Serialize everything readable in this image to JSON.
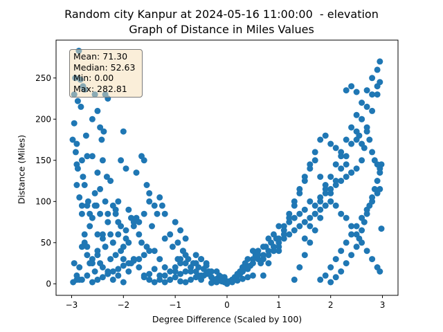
{
  "chart_data": {
    "type": "scatter",
    "title": "Random city Kanpur at 2024-05-16 11:00:00  - elevation",
    "subtitle": "Graph of Distance in Miles Values",
    "xlabel": "Degree Difference (Scaled by 100)",
    "ylabel": "Distance (Miles)",
    "xlim": [
      -3.3,
      3.3
    ],
    "ylim": [
      -14,
      296
    ],
    "xticks": [
      -3,
      -2,
      -1,
      0,
      1,
      2,
      3
    ],
    "yticks": [
      0,
      50,
      100,
      150,
      200,
      250
    ],
    "grid": false,
    "point_color": "#1f77b4",
    "stats": {
      "mean": "Mean: 71.30",
      "median": "Median: 52.63",
      "min": "Min: 0.00",
      "max": "Max: 282.81"
    },
    "x": [
      -2.97,
      -2.95,
      -2.93,
      -2.9,
      -2.9,
      -2.88,
      -2.86,
      -2.83,
      -2.82,
      -2.8,
      -2.78,
      -2.75,
      -2.72,
      -2.7,
      -2.6,
      -2.55,
      -2.5,
      -2.45,
      -2.42,
      -2.38,
      -2.35,
      -2.3,
      -2.98,
      -2.95,
      -2.92,
      -2.9,
      -2.88,
      -2.85,
      -2.8,
      -2.78,
      -2.75,
      -2.7,
      -2.68,
      -2.65,
      -2.6,
      -2.55,
      -2.52,
      -2.5,
      -2.45,
      -2.4,
      -2.35,
      -2.32,
      -2.25,
      -2.2,
      -2.15,
      -2.1,
      -2.05,
      -2.0,
      -1.95,
      -2.95,
      -2.9,
      -2.85,
      -2.8,
      -2.75,
      -2.7,
      -2.65,
      -2.6,
      -2.55,
      -2.5,
      -2.45,
      -2.4,
      -2.35,
      -2.3,
      -2.25,
      -2.2,
      -2.15,
      -2.1,
      -2.05,
      -2.0,
      -1.95,
      -1.9,
      -1.85,
      -1.8,
      -1.75,
      -1.7,
      -1.65,
      -1.6,
      -1.55,
      -1.5,
      -2.9,
      -2.85,
      -2.8,
      -2.75,
      -2.7,
      -2.65,
      -2.6,
      -2.55,
      -2.5,
      -2.45,
      -2.4,
      -2.35,
      -2.3,
      -2.25,
      -2.2,
      -2.15,
      -2.1,
      -2.05,
      -2.0,
      -1.95,
      -1.9,
      -1.85,
      -1.8,
      -1.75,
      -1.7,
      -1.65,
      -1.6,
      -1.55,
      -1.5,
      -1.45,
      -1.4,
      -1.35,
      -1.3,
      -1.25,
      -1.2,
      -2.8,
      -2.7,
      -2.6,
      -2.5,
      -2.4,
      -2.3,
      -2.2,
      -2.1,
      -2.0,
      -1.9,
      -1.8,
      -1.7,
      -1.6,
      -1.5,
      -1.4,
      -1.3,
      -1.2,
      -1.1,
      -1.05,
      -1.0,
      -0.95,
      -0.9,
      -0.85,
      -0.8,
      -2.6,
      -2.5,
      -2.4,
      -2.3,
      -2.2,
      -2.1,
      -2.0,
      -1.9,
      -1.8,
      -1.7,
      -1.6,
      -1.5,
      -1.4,
      -1.3,
      -1.2,
      -1.1,
      -1.0,
      -0.95,
      -0.9,
      -0.85,
      -0.8,
      -0.75,
      -0.7,
      -0.65,
      -0.6,
      -0.55,
      -0.5,
      -1.6,
      -1.5,
      -1.4,
      -1.3,
      -1.2,
      -1.1,
      -1.0,
      -0.9,
      -0.8,
      -0.7,
      -0.6,
      -0.55,
      -0.5,
      -0.45,
      -0.4,
      -0.35,
      -0.3,
      -1.2,
      -1.1,
      -1.0,
      -0.9,
      -0.8,
      -0.7,
      -0.6,
      -0.5,
      -0.45,
      -0.4,
      -0.35,
      -0.3,
      -0.25,
      -0.2,
      -0.15,
      -0.1,
      -0.05,
      0.0,
      -0.9,
      -0.8,
      -0.7,
      -0.6,
      -0.5,
      -0.4,
      -0.3,
      -0.25,
      -0.2,
      -0.15,
      -0.1,
      -0.05,
      0.0,
      0.05,
      0.1,
      0.15,
      0.2,
      0.25,
      0.3,
      -0.3,
      -0.2,
      -0.1,
      0.0,
      0.1,
      0.2,
      0.3,
      0.4,
      0.5,
      0.05,
      0.1,
      0.15,
      0.2,
      0.25,
      0.3,
      0.35,
      0.4,
      0.45,
      0.5,
      0.55,
      0.6,
      0.65,
      0.7,
      0.75,
      0.8,
      0.85,
      0.9,
      0.95,
      1.0,
      0.1,
      0.2,
      0.3,
      0.4,
      0.5,
      0.6,
      0.7,
      0.8,
      0.9,
      1.0,
      1.1,
      1.2,
      1.3,
      1.4,
      1.5,
      1.6,
      1.7,
      1.8,
      1.9,
      2.0,
      0.3,
      0.4,
      0.5,
      0.6,
      0.7,
      0.8,
      0.9,
      1.0,
      1.1,
      1.2,
      1.3,
      1.4,
      1.5,
      1.6,
      1.7,
      1.8,
      1.9,
      2.0,
      2.1,
      2.2,
      2.3,
      2.4,
      2.5,
      2.6,
      0.7,
      0.8,
      0.9,
      1.0,
      1.1,
      1.2,
      1.3,
      1.4,
      1.5,
      1.6,
      1.7,
      1.8,
      1.9,
      2.0,
      2.1,
      2.2,
      2.3,
      2.4,
      2.5,
      2.6,
      2.7,
      2.8,
      2.9,
      1.0,
      1.1,
      1.2,
      1.3,
      1.4,
      1.5,
      1.6,
      1.7,
      1.8,
      1.9,
      2.0,
      2.1,
      2.2,
      2.3,
      2.4,
      2.5,
      2.6,
      2.7,
      2.8,
      2.9,
      2.95,
      1.3,
      1.4,
      1.5,
      1.6,
      1.7,
      1.8,
      1.9,
      2.0,
      2.1,
      2.2,
      2.3,
      2.4,
      2.5,
      2.6,
      2.7,
      2.8,
      2.9,
      2.95,
      1.5,
      1.6,
      1.7,
      1.8,
      1.9,
      2.0,
      2.1,
      2.2,
      2.3,
      2.4,
      2.5,
      2.6,
      2.7,
      2.8,
      2.9,
      2.95,
      1.8,
      1.9,
      2.0,
      2.1,
      2.2,
      2.3,
      2.4,
      2.5,
      2.6,
      2.7,
      2.8,
      2.9,
      2.95,
      2.0,
      2.1,
      2.2,
      2.3,
      2.4,
      2.5,
      2.55,
      2.6,
      2.65,
      2.7,
      2.75,
      2.8,
      2.85,
      2.9,
      2.95,
      2.98,
      2.3,
      2.4,
      2.5,
      2.55,
      2.6,
      2.65,
      2.7,
      2.75,
      2.8,
      2.85,
      2.9,
      2.95,
      2.98
    ],
    "y": [
      2,
      230,
      250,
      120,
      170,
      222,
      283,
      248,
      215,
      95,
      240,
      236,
      180,
      155,
      200,
      230,
      210,
      190,
      175,
      185,
      230,
      225,
      175,
      195,
      160,
      145,
      140,
      105,
      150,
      130,
      120,
      95,
      100,
      85,
      155,
      110,
      95,
      135,
      115,
      150,
      100,
      130,
      125,
      95,
      90,
      100,
      150,
      185,
      140,
      25,
      10,
      5,
      85,
      60,
      45,
      70,
      80,
      95,
      60,
      85,
      55,
      45,
      75,
      60,
      50,
      85,
      60,
      70,
      45,
      55,
      90,
      80,
      70,
      135,
      75,
      155,
      150,
      120,
      110,
      5,
      20,
      45,
      50,
      35,
      25,
      30,
      15,
      40,
      25,
      60,
      45,
      85,
      30,
      50,
      35,
      75,
      40,
      30,
      65,
      50,
      25,
      75,
      80,
      60,
      50,
      85,
      45,
      100,
      70,
      95,
      85,
      105,
      95,
      85,
      5,
      10,
      25,
      35,
      20,
      15,
      5,
      10,
      2,
      15,
      30,
      20,
      10,
      5,
      40,
      30,
      55,
      60,
      45,
      75,
      50,
      65,
      40,
      55,
      2,
      5,
      8,
      12,
      15,
      18,
      22,
      25,
      28,
      30,
      35,
      40,
      2,
      10,
      20,
      5,
      15,
      30,
      25,
      40,
      35,
      30,
      20,
      25,
      15,
      10,
      5,
      8,
      12,
      18,
      5,
      10,
      15,
      20,
      30,
      25,
      15,
      35,
      20,
      30,
      10,
      25,
      15,
      8,
      2,
      5,
      8,
      12,
      15,
      20,
      25,
      30,
      18,
      22,
      12,
      8,
      5,
      15,
      10,
      5,
      8,
      3,
      3,
      2,
      5,
      8,
      10,
      12,
      15,
      3,
      6,
      4,
      8,
      2,
      1,
      3,
      5,
      8,
      10,
      12,
      15,
      1,
      2,
      3,
      0,
      2,
      4,
      6,
      8,
      10,
      3,
      5,
      8,
      12,
      15,
      20,
      25,
      18,
      22,
      30,
      35,
      40,
      25,
      30,
      45,
      35,
      50,
      40,
      55,
      45,
      5,
      10,
      15,
      20,
      25,
      30,
      35,
      40,
      45,
      50,
      55,
      60,
      65,
      70,
      75,
      80,
      85,
      90,
      95,
      100,
      20,
      30,
      40,
      35,
      45,
      55,
      60,
      70,
      65,
      75,
      80,
      85,
      90,
      100,
      95,
      105,
      110,
      115,
      120,
      125,
      130,
      135,
      140,
      150,
      10,
      25,
      40,
      55,
      70,
      85,
      100,
      115,
      130,
      145,
      160,
      175,
      180,
      170,
      165,
      155,
      145,
      135,
      175,
      200,
      190,
      210,
      230,
      40,
      60,
      80,
      95,
      110,
      125,
      140,
      150,
      130,
      120,
      100,
      95,
      85,
      80,
      70,
      60,
      50,
      40,
      30,
      20,
      15,
      5,
      20,
      35,
      50,
      65,
      80,
      95,
      110,
      125,
      140,
      155,
      170,
      185,
      200,
      215,
      230,
      240,
      245,
      55,
      70,
      85,
      100,
      115,
      130,
      145,
      160,
      175,
      190,
      205,
      220,
      235,
      250,
      260,
      270,
      5,
      10,
      20,
      30,
      40,
      50,
      60,
      70,
      80,
      90,
      100,
      110,
      115,
      2,
      8,
      15,
      25,
      35,
      45,
      55,
      65,
      75,
      85,
      95,
      105,
      115,
      125,
      135,
      145,
      235,
      240,
      233,
      180,
      170,
      165,
      185,
      175,
      160,
      150,
      145,
      140,
      67
    ]
  }
}
